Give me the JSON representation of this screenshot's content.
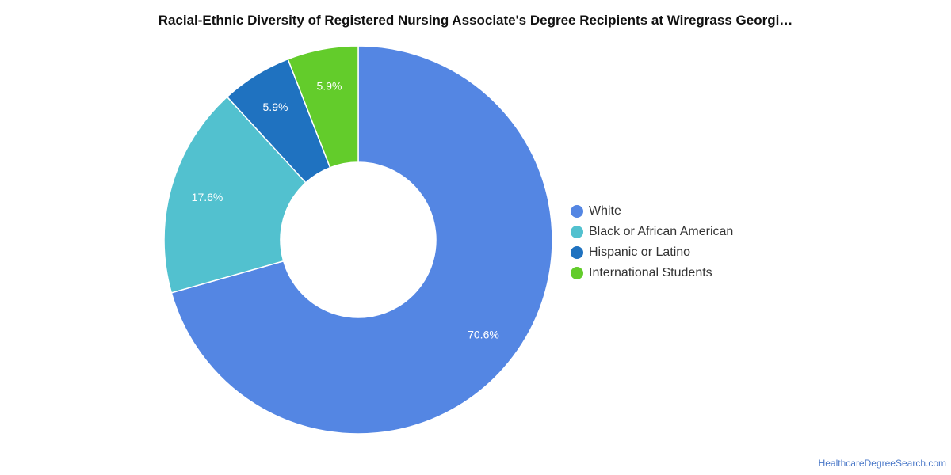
{
  "chart_data": {
    "type": "pie",
    "title": "Racial-Ethnic Diversity of Registered Nursing Associate's Degree Recipients at Wiregrass Georgi…",
    "categories": [
      "White",
      "Black or African American",
      "Hispanic or Latino",
      "International Students"
    ],
    "values": [
      70.6,
      17.6,
      5.9,
      5.9
    ],
    "labels": [
      "70.6%",
      "17.6%",
      "5.9%",
      "5.9%"
    ],
    "colors": [
      "#5486e3",
      "#52c1cf",
      "#1f72c0",
      "#63cc2b"
    ],
    "donut": true,
    "legend_position": "right"
  },
  "watermark": "HealthcareDegreeSearch.com"
}
